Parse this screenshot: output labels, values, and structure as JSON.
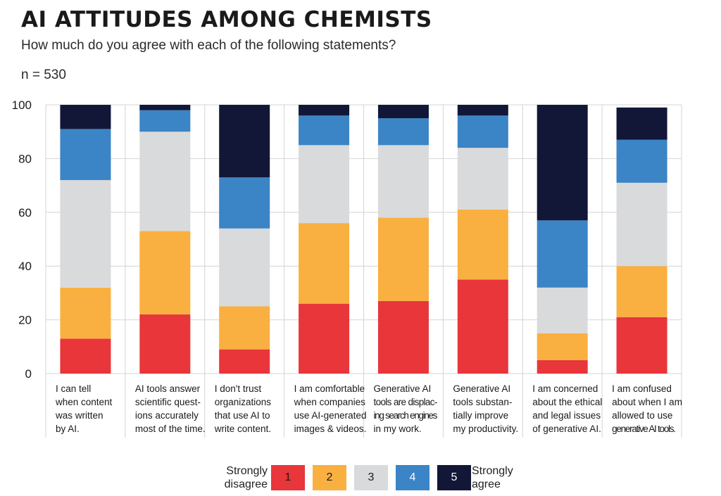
{
  "chart_data": {
    "type": "bar",
    "stacked": true,
    "title": "AI ATTITUDES AMONG CHEMISTS",
    "subtitle": "How much do you agree with each of the following statements?",
    "sample": "n = 530",
    "ylim": [
      0,
      100
    ],
    "yticks": [
      "0",
      "20",
      "40",
      "60",
      "80",
      "100"
    ],
    "categories": [
      [
        "I can tell",
        "when content",
        "was written",
        "by AI."
      ],
      [
        "AI tools answer",
        "scientific quest-",
        "ions accurately",
        "most of the time."
      ],
      [
        "I don't trust",
        "organizations",
        "that use AI to",
        "write content."
      ],
      [
        "I am comfortable",
        "when companies",
        "use AI-generated",
        "images & videos."
      ],
      [
        "Generative AI",
        "tools are displac-",
        "ing search engines",
        "in my work."
      ],
      [
        "Generative AI",
        "tools substan-",
        "tially improve",
        "my productivity."
      ],
      [
        "I am concerned",
        "about the ethical",
        "and legal issues",
        "of generative AI."
      ],
      [
        "I am confused",
        "about when I am",
        "allowed to use",
        "generative AI tools."
      ]
    ],
    "series": [
      {
        "name": "1",
        "color": "#e8363b",
        "values": [
          13,
          22,
          9,
          26,
          27,
          35,
          5,
          21
        ]
      },
      {
        "name": "2",
        "color": "#f9b040",
        "values": [
          19,
          31,
          16,
          30,
          31,
          26,
          10,
          19
        ]
      },
      {
        "name": "3",
        "color": "#d9dadc",
        "values": [
          40,
          37,
          29,
          29,
          27,
          23,
          17,
          31
        ]
      },
      {
        "name": "4",
        "color": "#3b84c5",
        "values": [
          19,
          8,
          19,
          11,
          10,
          12,
          25,
          16
        ]
      },
      {
        "name": "5",
        "color": "#121737",
        "values": [
          9,
          2,
          27,
          4,
          5,
          4,
          43,
          12
        ]
      }
    ],
    "legend": {
      "left_label": [
        "Strongly",
        "disagree"
      ],
      "right_label": [
        "Strongly",
        "agree"
      ],
      "text_colors": [
        "#1a1a1a",
        "#1a1a1a",
        "#1a1a1a",
        "#ffffff",
        "#ffffff"
      ]
    }
  }
}
